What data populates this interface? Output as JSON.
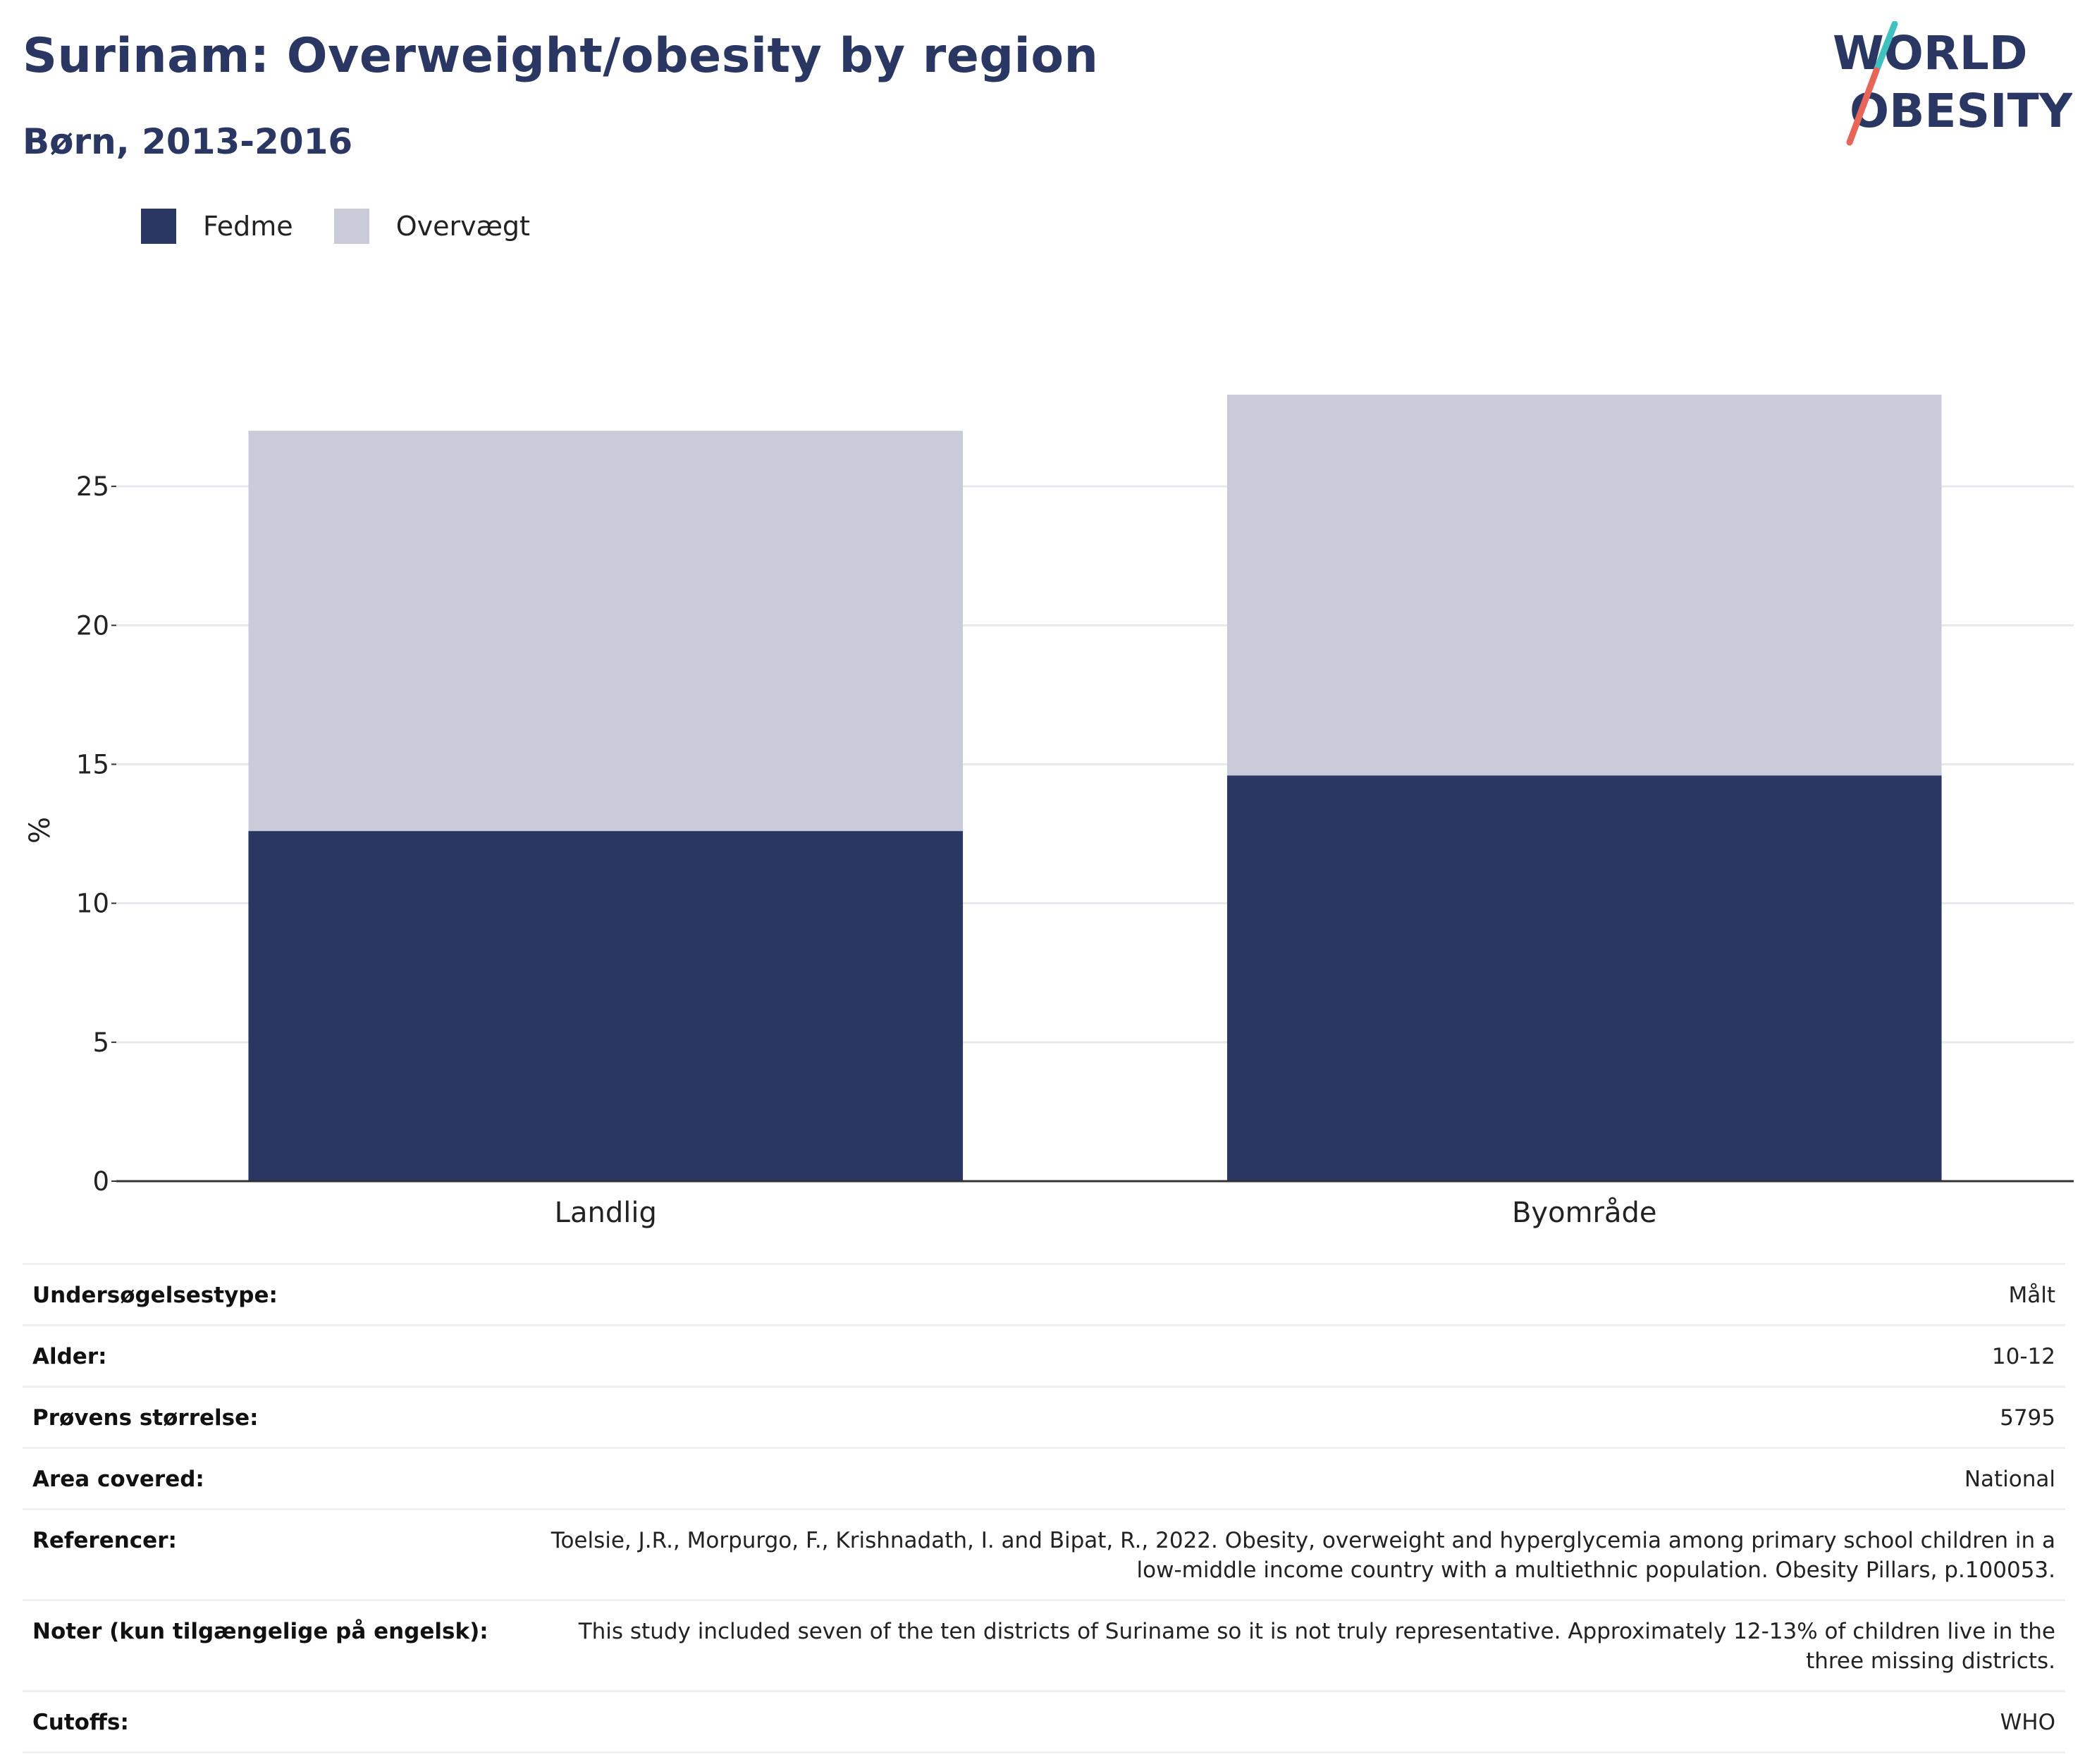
{
  "header": {
    "title": "Surinam: Overweight/obesity by region",
    "subtitle": "Børn, 2013-2016"
  },
  "logo": {
    "line1": "WORLD",
    "line2": "OBESITY",
    "colors": {
      "slash_top": "#3fc1c0",
      "slash_bottom": "#e8655a",
      "text": "#2a3763"
    }
  },
  "legend": [
    {
      "label": "Fedme",
      "color": "#2a3763"
    },
    {
      "label": "Overvægt",
      "color": "#c9ccd8"
    }
  ],
  "chart_data": {
    "type": "bar",
    "stacked": true,
    "categories": [
      "Landlig",
      "Byområde"
    ],
    "series": [
      {
        "name": "Fedme",
        "values": [
          12.6,
          14.6
        ],
        "color": "#2a3763"
      },
      {
        "name": "Overvægt",
        "values": [
          14.4,
          13.7
        ],
        "color": "#c9ccd8"
      }
    ],
    "ylabel": "%",
    "yticks": [
      0,
      5,
      10,
      15,
      20,
      25
    ],
    "ylim": [
      0,
      28.3
    ],
    "grid": true,
    "legend_position": "top-left"
  },
  "meta": [
    {
      "key": "Undersøgelsestype:",
      "value": "Målt"
    },
    {
      "key": "Alder:",
      "value": "10-12"
    },
    {
      "key": "Prøvens størrelse:",
      "value": "5795"
    },
    {
      "key": "Area covered:",
      "value": "National"
    },
    {
      "key": "Referencer:",
      "value": "Toelsie, J.R., Morpurgo, F., Krishnadath, I. and Bipat, R., 2022. Obesity, overweight and hyperglycemia among primary school children in a low-middle income country with a multiethnic population. Obesity Pillars, p.100053."
    },
    {
      "key": "Noter (kun tilgængelige på engelsk):",
      "value": "This study included seven of the ten districts of Suriname so it is not truly representative. Approximately 12-13% of children live in the three missing districts."
    },
    {
      "key": "Cutoffs:",
      "value": "WHO"
    }
  ]
}
